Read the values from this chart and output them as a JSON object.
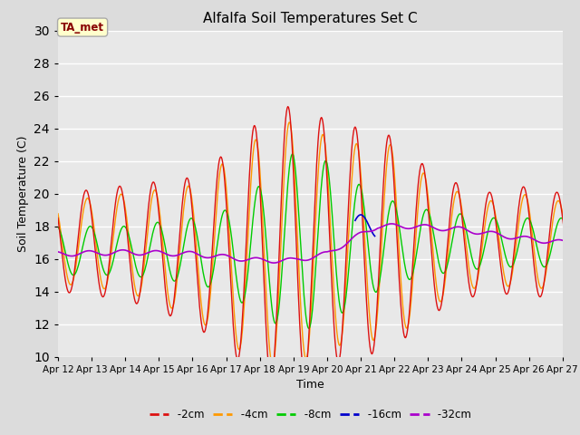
{
  "title": "Alfalfa Soil Temperatures Set C",
  "xlabel": "Time",
  "ylabel": "Soil Temperature (C)",
  "ylim": [
    10,
    30
  ],
  "xlim": [
    0,
    360
  ],
  "bg_color": "#dcdcdc",
  "plot_bg_color": "#dcdcdc",
  "annotation_text": "TA_met",
  "annotation_bg": "#ffffcc",
  "annotation_edge": "#aaaaaa",
  "annotation_color": "#880000",
  "series_colors": {
    "-2cm": "#dd1111",
    "-4cm": "#ff9900",
    "-8cm": "#00cc00",
    "-16cm": "#0000cc",
    "-32cm": "#aa00cc"
  },
  "xtick_labels": [
    "Apr 12",
    "Apr 13",
    "Apr 14",
    "Apr 15",
    "Apr 16",
    "Apr 17",
    "Apr 18",
    "Apr 19",
    "Apr 20",
    "Apr 21",
    "Apr 22",
    "Apr 23",
    "Apr 24",
    "Apr 25",
    "Apr 26",
    "Apr 27"
  ],
  "xtick_positions": [
    0,
    24,
    48,
    72,
    96,
    120,
    144,
    168,
    192,
    216,
    240,
    264,
    288,
    312,
    336,
    360
  ],
  "ytick_positions": [
    10,
    12,
    14,
    16,
    18,
    20,
    22,
    24,
    26,
    28,
    30
  ]
}
